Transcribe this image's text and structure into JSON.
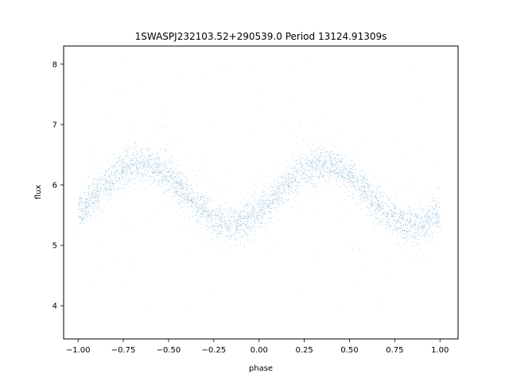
{
  "chart_data": {
    "type": "scatter",
    "title": "1SWASPJ232103.52+290539.0 Period 13124.91309s",
    "xlabel": "phase",
    "ylabel": "flux",
    "xlim": [
      -1.08,
      1.1
    ],
    "ylim": [
      3.45,
      8.3
    ],
    "xticks": [
      -1.0,
      -0.75,
      -0.5,
      -0.25,
      0.0,
      0.25,
      0.5,
      0.75,
      1.0
    ],
    "xtick_labels": [
      "−1.00",
      "−0.75",
      "−0.50",
      "−0.25",
      "0.00",
      "0.25",
      "0.50",
      "0.75",
      "1.00"
    ],
    "yticks": [
      4,
      5,
      6,
      7,
      8
    ],
    "ytick_labels": [
      "4",
      "5",
      "6",
      "7",
      "8"
    ],
    "grid": false,
    "marker_color": "#1f77b4",
    "series": [
      {
        "model": "sinusoid",
        "x_range": [
          -1.0,
          1.0
        ],
        "mean_flux": 5.85,
        "amplitude": 0.5,
        "phase_of_max": [
          -0.65,
          0.35
        ],
        "phase_of_min": [
          -0.15,
          0.85
        ],
        "scatter_sigma": 0.15,
        "outlier_range": [
          3.7,
          8.1
        ],
        "n_points": 14000
      }
    ]
  }
}
